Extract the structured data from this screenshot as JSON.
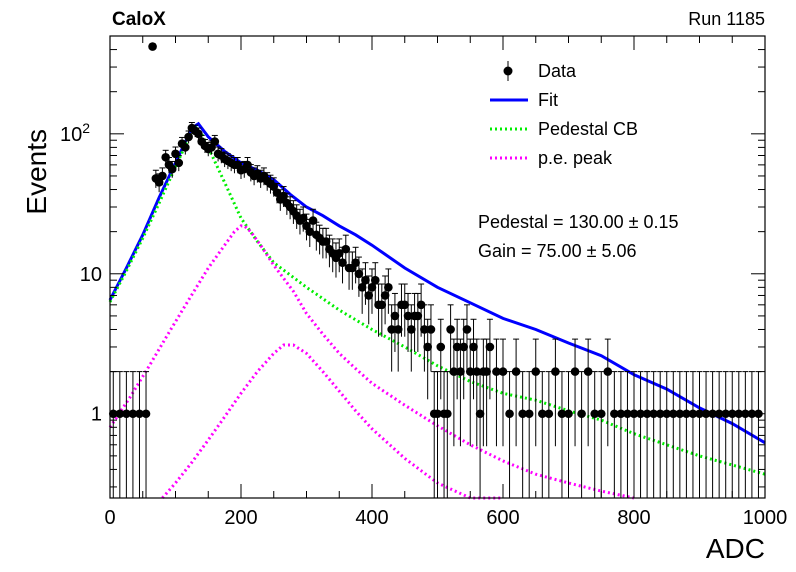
{
  "chart_data": {
    "type": "scatter",
    "title_left": "CaloX",
    "title_right": "Run 1185",
    "xlabel": "ADC",
    "ylabel": "Events",
    "xlim": [
      0,
      1000
    ],
    "ylim": [
      0.25,
      500
    ],
    "yscale": "log",
    "x_ticks": [
      "0",
      "200",
      "400",
      "600",
      "800",
      "1000"
    ],
    "y_ticks": [
      {
        "value": 1,
        "label": "1"
      },
      {
        "value": 10,
        "label": "10"
      },
      {
        "value": 100,
        "label": "10",
        "sup": "2"
      }
    ],
    "legend": {
      "placement": "top-right",
      "entries": [
        {
          "label": "Data",
          "style": "marker",
          "color": "#000000"
        },
        {
          "label": "Fit",
          "style": "solid",
          "color": "#0000ff"
        },
        {
          "label": "Pedestal CB",
          "style": "dotted",
          "color": "#00ee00"
        },
        {
          "label": "p.e. peak",
          "style": "dotted",
          "color": "#ff00ff"
        }
      ]
    },
    "annotations": [
      {
        "label": "Pedestal = 130.00",
        "pm": "±",
        "error": "0.15"
      },
      {
        "label": "Gain = 75.00",
        "pm": "±",
        "error": "5.06"
      }
    ],
    "series": [
      {
        "name": "Data",
        "style": "marker-errorbars",
        "color": "#000000",
        "x": [
          5,
          15,
          25,
          35,
          45,
          55,
          65,
          70,
          75,
          80,
          85,
          90,
          95,
          100,
          105,
          110,
          115,
          120,
          125,
          130,
          135,
          140,
          145,
          150,
          155,
          160,
          165,
          170,
          175,
          180,
          185,
          190,
          195,
          200,
          205,
          210,
          215,
          220,
          225,
          230,
          235,
          240,
          245,
          250,
          255,
          260,
          265,
          270,
          275,
          280,
          285,
          290,
          295,
          300,
          305,
          310,
          315,
          320,
          325,
          330,
          335,
          340,
          345,
          350,
          355,
          360,
          365,
          370,
          375,
          380,
          385,
          390,
          395,
          400,
          405,
          410,
          415,
          420,
          425,
          430,
          435,
          440,
          445,
          450,
          455,
          460,
          465,
          470,
          475,
          480,
          485,
          490,
          495,
          500,
          505,
          510,
          515,
          520,
          525,
          530,
          535,
          540,
          545,
          550,
          555,
          560,
          565,
          570,
          575,
          580,
          590,
          600,
          610,
          620,
          630,
          640,
          650,
          660,
          670,
          680,
          690,
          700,
          710,
          720,
          730,
          740,
          750,
          760,
          770,
          780,
          790,
          800,
          810,
          820,
          830,
          840,
          850,
          860,
          870,
          880,
          890,
          900,
          910,
          920,
          930,
          940,
          950,
          960,
          970,
          980,
          990
        ],
        "y": [
          1,
          1,
          1,
          1,
          1,
          1,
          420,
          48,
          45,
          50,
          68,
          60,
          56,
          72,
          62,
          85,
          80,
          95,
          110,
          105,
          100,
          88,
          82,
          78,
          80,
          88,
          72,
          70,
          66,
          64,
          62,
          60,
          60,
          55,
          56,
          60,
          53,
          50,
          52,
          48,
          50,
          46,
          44,
          42,
          38,
          34,
          36,
          32,
          30,
          28,
          26,
          24,
          25,
          22,
          20,
          24,
          19,
          18,
          17,
          17,
          15,
          14,
          13,
          14,
          12,
          15,
          11,
          11,
          12,
          10,
          8,
          9,
          7,
          8,
          9,
          6,
          6,
          7,
          8,
          4,
          5,
          4,
          6,
          6,
          5,
          4,
          5,
          5,
          6,
          4,
          3,
          4,
          1,
          1,
          3,
          1,
          1,
          4,
          2,
          3,
          2,
          3,
          4,
          2,
          3,
          2,
          1,
          2,
          2,
          3,
          2,
          2,
          1,
          2,
          1,
          1,
          2,
          1,
          1,
          2,
          1,
          1,
          2,
          1,
          2,
          1,
          1,
          2,
          1,
          1,
          1,
          1,
          1,
          1,
          1,
          1,
          1,
          1,
          1,
          1,
          1,
          1,
          1,
          1,
          1,
          1,
          1,
          1,
          1,
          1,
          1
        ]
      },
      {
        "name": "Fit",
        "style": "solid",
        "color": "#0000ff",
        "x": [
          0,
          25,
          50,
          75,
          100,
          125,
          135,
          150,
          175,
          200,
          225,
          250,
          275,
          300,
          325,
          350,
          375,
          400,
          450,
          500,
          550,
          600,
          650,
          700,
          750,
          800,
          850,
          900,
          950,
          1000
        ],
        "y": [
          6.5,
          11,
          19,
          35,
          62,
          110,
          118,
          95,
          75,
          62,
          55,
          47,
          37,
          30,
          26,
          22,
          19,
          16,
          11,
          8,
          6.2,
          4.8,
          4.0,
          3.2,
          2.6,
          1.9,
          1.5,
          1.1,
          0.85,
          0.62
        ]
      },
      {
        "name": "Pedestal CB",
        "style": "dotted",
        "color": "#00ee00",
        "x": [
          0,
          25,
          50,
          75,
          100,
          125,
          130,
          140,
          150,
          175,
          200,
          225,
          250,
          300,
          350,
          400,
          450,
          500,
          550,
          600,
          650,
          700,
          750,
          800,
          850,
          900,
          950,
          1000
        ],
        "y": [
          6.3,
          10.5,
          18,
          32,
          58,
          105,
          112,
          100,
          80,
          45,
          25,
          17,
          12,
          8,
          5.5,
          4.0,
          3.0,
          2.2,
          1.7,
          1.4,
          1.25,
          1.05,
          0.9,
          0.72,
          0.6,
          0.5,
          0.43,
          0.37
        ]
      },
      {
        "name": "p.e. peak",
        "style": "dotted",
        "color": "#ff00ff",
        "x": [
          0,
          30,
          60,
          90,
          120,
          150,
          175,
          190,
          200,
          205,
          215,
          230,
          250,
          280,
          300,
          325,
          350,
          375,
          400,
          450,
          500,
          550,
          600,
          650,
          700,
          750,
          800
        ],
        "y": [
          0.8,
          1.3,
          2.2,
          3.8,
          6.5,
          11,
          16,
          20,
          22,
          22,
          20,
          16,
          11.5,
          7.5,
          5.2,
          3.7,
          2.7,
          2.1,
          1.65,
          1.15,
          0.82,
          0.6,
          0.46,
          0.37,
          0.32,
          0.28,
          0.25
        ]
      },
      {
        "name": "p.e. peak 2",
        "style": "dotted",
        "color": "#ff00ff",
        "x": [
          80,
          100,
          125,
          150,
          175,
          200,
          225,
          250,
          265,
          280,
          300,
          325,
          350,
          375,
          400,
          450,
          500,
          550,
          600
        ],
        "y": [
          0.25,
          0.32,
          0.45,
          0.65,
          0.95,
          1.4,
          2.0,
          2.7,
          3.1,
          3.1,
          2.7,
          2.0,
          1.45,
          1.05,
          0.78,
          0.48,
          0.32,
          0.25,
          0.2
        ]
      }
    ]
  }
}
